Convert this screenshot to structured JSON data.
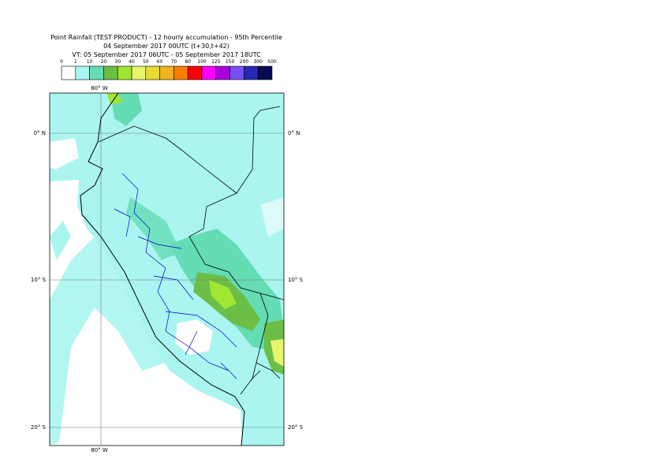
{
  "header": {
    "title": "Point Rainfall (TEST PRODUCT) - 12 hourly accumulation - 95th Percentile",
    "base_time": "04 September 2017 00UTC (t+30,t+42)",
    "valid_time": "VT: 05 September 2017 06UTC - 05 September 2017 18UTC"
  },
  "legend": {
    "labels": [
      0,
      1,
      10,
      20,
      30,
      40,
      50,
      60,
      70,
      80,
      100,
      125,
      150,
      200,
      300,
      500
    ],
    "colors": [
      "#ffffff",
      "#aaf5f0",
      "#64dcb4",
      "#6cbe46",
      "#a0e632",
      "#e6f56e",
      "#e6dc32",
      "#f0b41e",
      "#fa7d00",
      "#ff0000",
      "#ff00ff",
      "#aa00dc",
      "#7850f0",
      "#2828b4",
      "#0a0a50"
    ]
  },
  "map": {
    "lon_label_top": "80° W",
    "lon_label_bottom": "80° W",
    "lat_labels": [
      "0° N",
      "10° S",
      "20° S"
    ]
  }
}
